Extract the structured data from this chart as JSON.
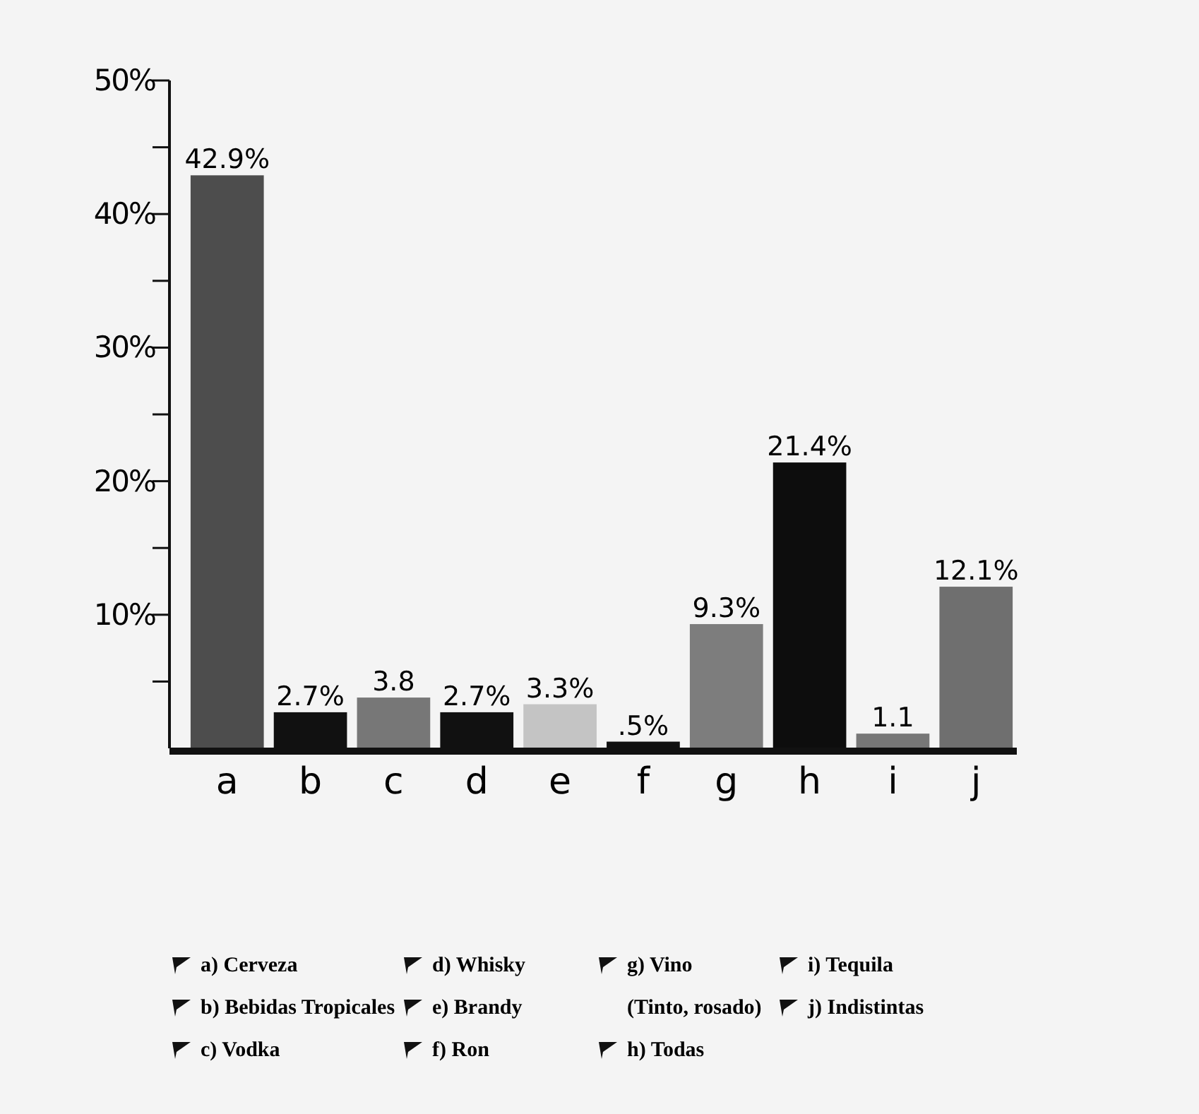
{
  "chart_data": {
    "type": "bar",
    "categories": [
      "a",
      "b",
      "c",
      "d",
      "e",
      "f",
      "g",
      "h",
      "i",
      "j"
    ],
    "values": [
      42.9,
      2.7,
      3.8,
      2.7,
      3.3,
      0.5,
      9.3,
      21.4,
      1.1,
      12.1
    ],
    "colors": [
      "#4d4d4d",
      "#111111",
      "#777777",
      "#111111",
      "#c4c4c4",
      "#111111",
      "#7d7d7d",
      "#0d0d0d",
      "#777777",
      "#6f6f6f"
    ],
    "value_labels": [
      "42.9%",
      "2.7%",
      "3.8",
      "2.7%",
      "3.3%",
      ".5%",
      "9.3%",
      "21.4%",
      "1.1",
      "12.1%"
    ],
    "ylim": [
      0,
      50
    ],
    "yticks": [
      {
        "value": 5,
        "label": null
      },
      {
        "value": 10,
        "label": "10%"
      },
      {
        "value": 15,
        "label": null
      },
      {
        "value": 20,
        "label": "20%"
      },
      {
        "value": 25,
        "label": null
      },
      {
        "value": 30,
        "label": "30%"
      },
      {
        "value": 35,
        "label": null
      },
      {
        "value": 40,
        "label": "40%"
      },
      {
        "value": 45,
        "label": null
      },
      {
        "value": 50,
        "label": "50%"
      }
    ],
    "grid": false,
    "annotations": [
      "a) Cerveza",
      "b) Bebidas Tropicales",
      "c) Vodka",
      "d) Whisky",
      "e) Brandy",
      "f) Ron",
      "g) Vino (Tinto, rosado)",
      "h) Todas",
      "i) Tequila",
      "j) Indistintas"
    ]
  }
}
